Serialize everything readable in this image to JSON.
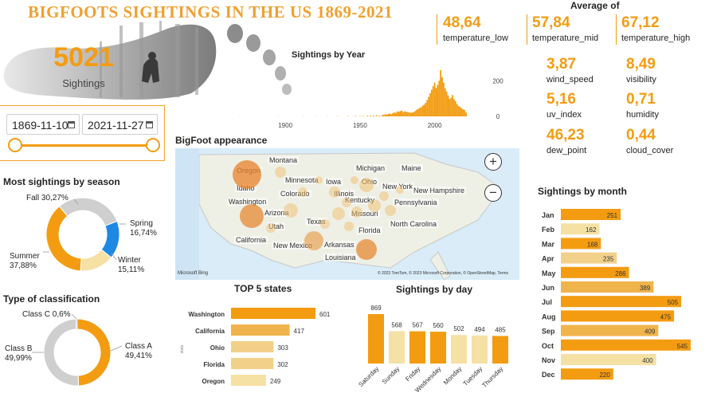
{
  "title": "BIGFOOTS SIGHTINGS  IN  THE US 1869-2021",
  "total": {
    "value": "5021",
    "label": "Sightings"
  },
  "date_range": {
    "start": "1869-11-10",
    "end": "2021-11-27"
  },
  "averages": {
    "title": "Average of",
    "top": [
      {
        "value": "48,64",
        "label": "temperature_low"
      },
      {
        "value": "57,84",
        "label": "temperature_mid"
      },
      {
        "value": "67,12",
        "label": "temperature_high"
      }
    ],
    "grid": [
      {
        "value": "3,87",
        "label": "wind_speed"
      },
      {
        "value": "8,49",
        "label": "visibility"
      },
      {
        "value": "5,16",
        "label": "uv_index"
      },
      {
        "value": "0,71",
        "label": "humidity"
      },
      {
        "value": "46,23",
        "label": "dew_point"
      },
      {
        "value": "0,44",
        "label": "cloud_cover"
      }
    ]
  },
  "map": {
    "title": "BigFoot appearance",
    "labels": [
      "Montana",
      "Michigan",
      "Maine",
      "Oregon",
      "Minnesota",
      "Idaho",
      "Iowa",
      "Ohio",
      "New York",
      "Colorado",
      "Illinois",
      "New Hampshire",
      "Washington",
      "Kentucky",
      "Pennsylvania",
      "Arizona",
      "Missouri",
      "Texas",
      "Utah",
      "North Carolina",
      "Florida",
      "California",
      "New Mexico",
      "Arkansas",
      "Louisiana"
    ],
    "zoom_in": "+",
    "zoom_out": "−",
    "brand": "Microsoft Bing",
    "copyright": "© 2023 TomTom, © 2023 Microsoft Corporation, © OpenStreetMap, Terms"
  },
  "chart_data": [
    {
      "id": "by_year",
      "type": "bar",
      "title": "Sightings by Year",
      "xlabel": "",
      "ylabel": "",
      "xlim": [
        1869,
        2021
      ],
      "x_ticks": [
        1900,
        1950,
        2000
      ],
      "y_ticks": [
        0,
        200
      ],
      "ylim": [
        0,
        260
      ],
      "color": "#f39c12",
      "points": [
        [
          1869,
          1
        ],
        [
          1895,
          1
        ],
        [
          1912,
          1
        ],
        [
          1921,
          1
        ],
        [
          1928,
          1
        ],
        [
          1935,
          2
        ],
        [
          1942,
          2
        ],
        [
          1947,
          3
        ],
        [
          1950,
          2
        ],
        [
          1952,
          3
        ],
        [
          1955,
          4
        ],
        [
          1957,
          4
        ],
        [
          1959,
          5
        ],
        [
          1961,
          6
        ],
        [
          1963,
          5
        ],
        [
          1965,
          8
        ],
        [
          1966,
          9
        ],
        [
          1967,
          12
        ],
        [
          1968,
          10
        ],
        [
          1969,
          14
        ],
        [
          1970,
          16
        ],
        [
          1971,
          12
        ],
        [
          1972,
          18
        ],
        [
          1973,
          22
        ],
        [
          1974,
          20
        ],
        [
          1975,
          28
        ],
        [
          1976,
          26
        ],
        [
          1977,
          30
        ],
        [
          1978,
          32
        ],
        [
          1979,
          24
        ],
        [
          1980,
          28
        ],
        [
          1981,
          26
        ],
        [
          1982,
          24
        ],
        [
          1983,
          22
        ],
        [
          1984,
          20
        ],
        [
          1985,
          22
        ],
        [
          1986,
          24
        ],
        [
          1987,
          30
        ],
        [
          1988,
          38
        ],
        [
          1989,
          42
        ],
        [
          1990,
          48
        ],
        [
          1991,
          52
        ],
        [
          1992,
          60
        ],
        [
          1993,
          66
        ],
        [
          1994,
          76
        ],
        [
          1995,
          92
        ],
        [
          1996,
          110
        ],
        [
          1997,
          130
        ],
        [
          1998,
          150
        ],
        [
          1999,
          170
        ],
        [
          2000,
          190
        ],
        [
          2001,
          160
        ],
        [
          2002,
          178
        ],
        [
          2003,
          200
        ],
        [
          2004,
          260
        ],
        [
          2005,
          220
        ],
        [
          2006,
          190
        ],
        [
          2007,
          158
        ],
        [
          2008,
          140
        ],
        [
          2009,
          118
        ],
        [
          2010,
          98
        ],
        [
          2011,
          105
        ],
        [
          2012,
          120
        ],
        [
          2013,
          96
        ],
        [
          2014,
          85
        ],
        [
          2015,
          70
        ],
        [
          2016,
          58
        ],
        [
          2017,
          52
        ],
        [
          2018,
          46
        ],
        [
          2019,
          40
        ],
        [
          2020,
          36
        ],
        [
          2021,
          22
        ]
      ]
    },
    {
      "id": "by_season",
      "type": "pie",
      "title": "Most sightings by season",
      "labels": [
        "Fall",
        "Spring",
        "Winter",
        "Summer"
      ],
      "values": [
        30.27,
        16.74,
        15.11,
        37.88
      ],
      "display": [
        "Fall 30,27%",
        "Spring\n16,74%",
        "Winter\n15,11%",
        "Summer\n37,88%"
      ],
      "colors": [
        "#cfcfcf",
        "#1e88e5",
        "#f5e1a4",
        "#f39c12"
      ]
    },
    {
      "id": "by_class",
      "type": "pie",
      "title": "Type of classification",
      "labels": [
        "Class A",
        "Class B",
        "Class C"
      ],
      "values": [
        49.41,
        49.99,
        0.6
      ],
      "display": [
        "Class A\n49,41%",
        "Class B\n49,99%",
        "Class C 0,6%"
      ],
      "colors": [
        "#f39c12",
        "#cfcfcf",
        "#6a8fd1"
      ]
    },
    {
      "id": "top5_states",
      "type": "bar",
      "orientation": "horizontal",
      "title": "TOP 5 states",
      "ylabel": "state",
      "categories": [
        "Washington",
        "California",
        "Ohio",
        "Florida",
        "Oregon"
      ],
      "values": [
        601,
        417,
        303,
        302,
        249
      ],
      "colors": [
        "#f39c12",
        "#f0b44c",
        "#f3d08a",
        "#f3d08a",
        "#f5e1a4"
      ]
    },
    {
      "id": "by_day",
      "type": "bar",
      "title": "Sightings by day",
      "categories": [
        "Saturday",
        "Sunday",
        "Friday",
        "Wednesday",
        "Monday",
        "Tuesday",
        "Thursday"
      ],
      "values": [
        869,
        568,
        567,
        560,
        502,
        494,
        485
      ],
      "colors": [
        "#f39c12",
        "#f5e1a4",
        "#f39c12",
        "#f39c12",
        "#f5e1a4",
        "#f5e1a4",
        "#f39c12"
      ]
    },
    {
      "id": "by_month",
      "type": "bar",
      "orientation": "horizontal",
      "title": "Sightings by month",
      "categories": [
        "Jan",
        "Feb",
        "Mar",
        "Apr",
        "May",
        "Jun",
        "Jul",
        "Aug",
        "Sep",
        "Oct",
        "Nov",
        "Dec"
      ],
      "values": [
        251,
        162,
        168,
        235,
        286,
        389,
        505,
        475,
        409,
        545,
        400,
        220
      ],
      "colors": [
        "#f39c12",
        "#f5e1a4",
        "#f39c12",
        "#f3d08a",
        "#f39c12",
        "#f0b44c",
        "#f39c12",
        "#f39c12",
        "#f0b44c",
        "#f39c12",
        "#f5e1a4",
        "#f39c12"
      ]
    }
  ]
}
